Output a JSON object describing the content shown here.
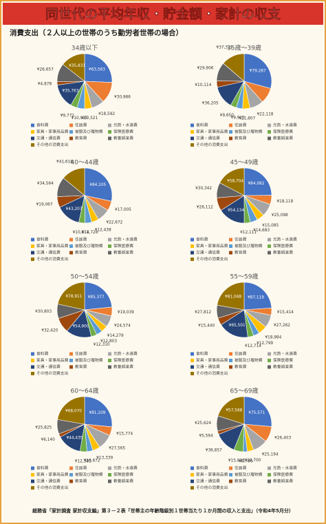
{
  "header": {
    "title": "同世代の平均年収・貯金額・家計の収支"
  },
  "subtitle": "消費支出（２人以上の世帯のうち勤労者世帯の場合）",
  "footer": "総務省「家計調査 家計収支編」第３－２表「世帯主の年齢階級別１世帯当たり１か月間の収入と支出」（令和4年5月分）",
  "chart_data": [
    {
      "type": "pie",
      "title": "34歳以下",
      "categories": [
        "食料費",
        "住居費",
        "光熱・水道費",
        "家具・家事用品費",
        "被服及び履物費",
        "保険医療費",
        "交通・通信費",
        "教育費",
        "教養娯楽費",
        "その他の消費支出"
      ],
      "values": [
        63563,
        30986,
        18592,
        10521,
        10915,
        9772,
        35763,
        4878,
        26657,
        35831
      ],
      "value_labels": [
        "¥63,563",
        "¥30,986",
        "¥18,592",
        "¥10,521",
        "¥10,915",
        "¥9,772",
        "¥35,763",
        "¥4,878",
        "¥26,657",
        "¥35,831"
      ],
      "colors": [
        "#4472c4",
        "#ed7d31",
        "#a5a5a5",
        "#ffc000",
        "#5b9bd5",
        "#70ad47",
        "#264478",
        "#9e480e",
        "#636363",
        "#997300"
      ]
    },
    {
      "type": "pie",
      "title": "35歳～39歳",
      "categories": [
        "食料費",
        "住居費",
        "光熱・水道費",
        "家具・家事用品費",
        "被服及び履物費",
        "保険医療費",
        "交通・通信費",
        "教育費",
        "教養娯楽費",
        "その他の消費支出"
      ],
      "values": [
        79287,
        25000,
        22118,
        11807,
        9915,
        9650,
        36205,
        10114,
        29906,
        37321
      ],
      "value_labels": [
        "¥79,287",
        null,
        "¥22,118",
        "¥11,807",
        "¥9,915",
        "¥9,650",
        "¥36,205",
        "¥10,114",
        "¥29,906",
        "¥37,321"
      ],
      "colors": [
        "#4472c4",
        "#ed7d31",
        "#a5a5a5",
        "#ffc000",
        "#5b9bd5",
        "#70ad47",
        "#264478",
        "#9e480e",
        "#636363",
        "#997300"
      ]
    },
    {
      "type": "pie",
      "title": "40～44歳",
      "categories": [
        "食料費",
        "住居費",
        "光熱・水道費",
        "家具・家事用品費",
        "被服及び履物費",
        "保険医療費",
        "交通・通信費",
        "教育費",
        "教養娯楽費",
        "その他の消費支出"
      ],
      "values": [
        84105,
        17005,
        22672,
        12438,
        11728,
        10814,
        43207,
        19067,
        34564,
        41616
      ],
      "value_labels": [
        "¥84,105",
        "¥17,005",
        "¥22,672",
        "¥12,438",
        "¥11,728",
        "¥10,814",
        "¥43,207",
        "¥19,067",
        "¥34,564",
        "¥41,616"
      ],
      "colors": [
        "#4472c4",
        "#ed7d31",
        "#a5a5a5",
        "#ffc000",
        "#5b9bd5",
        "#70ad47",
        "#264478",
        "#9e480e",
        "#636363",
        "#997300"
      ]
    },
    {
      "type": "pie",
      "title": "45～49歳",
      "categories": [
        "食料費",
        "住居費",
        "光熱・水道費",
        "家具・家事用品費",
        "被服及び履物費",
        "保険医療費",
        "交通・通信費",
        "教育費",
        "教養娯楽費",
        "その他の消費支出"
      ],
      "values": [
        84082,
        18118,
        25098,
        15085,
        14683,
        12111,
        54134,
        26112,
        30342,
        58704
      ],
      "value_labels": [
        "¥84,082",
        "¥18,118",
        "¥25,098",
        "¥15,085",
        "¥14,683",
        "¥12,111",
        "¥54,134",
        "¥26,112",
        "¥30,342",
        "¥58,704"
      ],
      "colors": [
        "#4472c4",
        "#ed7d31",
        "#a5a5a5",
        "#ffc000",
        "#5b9bd5",
        "#70ad47",
        "#264478",
        "#9e480e",
        "#636363",
        "#997300"
      ]
    },
    {
      "type": "pie",
      "title": "50～54歳",
      "categories": [
        "食料費",
        "住居費",
        "光熱・水道費",
        "家具・家事用品費",
        "被服及び履物費",
        "保険医療費",
        "交通・通信費",
        "教育費",
        "教養娯楽費",
        "その他の消費支出"
      ],
      "values": [
        85377,
        19039,
        24574,
        14279,
        12803,
        12310,
        54900,
        32420,
        30803,
        78911
      ],
      "value_labels": [
        "¥85,377",
        "¥19,039",
        "¥24,574",
        "¥14,279",
        "¥12,803",
        "¥12,310",
        "¥54,900",
        "¥32,420",
        "¥30,803",
        "¥78,911"
      ],
      "colors": [
        "#4472c4",
        "#ed7d31",
        "#a5a5a5",
        "#ffc000",
        "#5b9bd5",
        "#70ad47",
        "#264478",
        "#9e480e",
        "#636363",
        "#997300"
      ]
    },
    {
      "type": "pie",
      "title": "55～59歳",
      "categories": [
        "食料費",
        "住居費",
        "光熱・水道費",
        "家具・家事用品費",
        "被服及び履物費",
        "保険医療費",
        "交通・通信費",
        "教育費",
        "教養娯楽費",
        "その他の消費支出"
      ],
      "values": [
        87119,
        15414,
        27262,
        18984,
        12799,
        12714,
        65501,
        15440,
        27812,
        81048
      ],
      "value_labels": [
        "¥87,119",
        "¥15,414",
        "¥27,262",
        "¥18,984",
        "¥12,799",
        "¥12,714",
        "¥65,501",
        "¥15,440",
        "¥27,812",
        "¥81,048"
      ],
      "colors": [
        "#4472c4",
        "#ed7d31",
        "#a5a5a5",
        "#ffc000",
        "#5b9bd5",
        "#70ad47",
        "#264478",
        "#9e480e",
        "#636363",
        "#997300"
      ]
    },
    {
      "type": "pie",
      "title": "60～64歳",
      "categories": [
        "食料費",
        "住居費",
        "光熱・水道費",
        "家具・家事用品費",
        "被服及び履物費",
        "保険医療費",
        "交通・通信費",
        "教育費",
        "教養娯楽費",
        "その他の消費支出"
      ],
      "values": [
        81109,
        15774,
        27565,
        13339,
        10672,
        12381,
        44435,
        6140,
        25825,
        68070
      ],
      "value_labels": [
        "¥81,109",
        "¥15,774",
        "¥27,565",
        "¥13,339",
        "¥10,672",
        "¥12,381",
        "¥44,435",
        "¥6,140",
        "¥25,825",
        "¥68,070"
      ],
      "colors": [
        "#4472c4",
        "#ed7d31",
        "#a5a5a5",
        "#ffc000",
        "#5b9bd5",
        "#70ad47",
        "#264478",
        "#9e480e",
        "#636363",
        "#997300"
      ]
    },
    {
      "type": "pie",
      "title": "65～69歳",
      "categories": [
        "食料費",
        "住居費",
        "光熱・水道費",
        "家具・家事用品費",
        "被服及び履物費",
        "保険医療費",
        "交通・通信費",
        "教育費",
        "教養娯楽費",
        "その他の消費支出"
      ],
      "values": [
        75571,
        26403,
        25194,
        10700,
        6786,
        15823,
        36857,
        5594,
        25624,
        57568
      ],
      "value_labels": [
        "¥75,571",
        "¥26,403",
        "¥25,194",
        "¥10,700",
        "¥6,786",
        "¥15,823",
        "¥36,857",
        "¥5,594",
        "¥25,624",
        "¥57,568"
      ],
      "colors": [
        "#4472c4",
        "#ed7d31",
        "#a5a5a5",
        "#ffc000",
        "#5b9bd5",
        "#70ad47",
        "#264478",
        "#9e480e",
        "#636363",
        "#997300"
      ]
    }
  ]
}
